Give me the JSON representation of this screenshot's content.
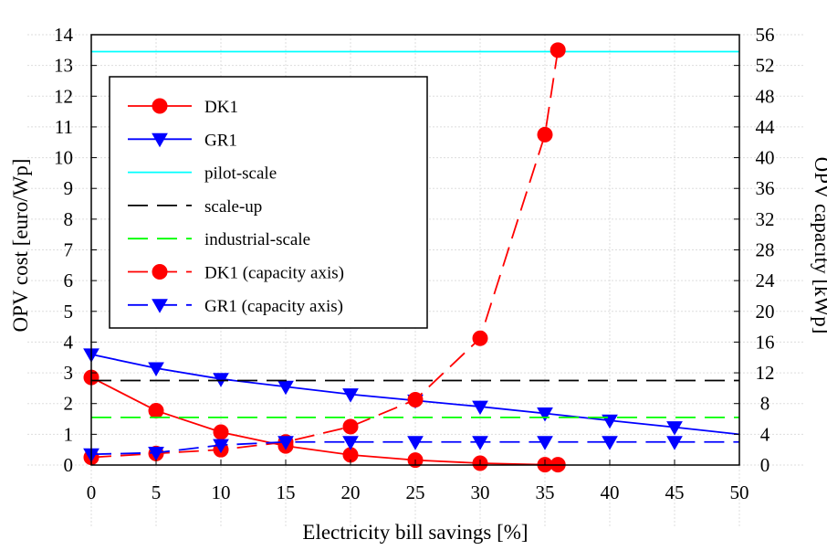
{
  "chart_data": {
    "type": "line",
    "xlabel": "Electricity bill savings [%]",
    "ylabel_left": "OPV cost [euro/Wp]",
    "ylabel_right": "OPV capacity [kWp]",
    "xlim": [
      0,
      50
    ],
    "ylim_left": [
      0,
      14
    ],
    "ylim_right": [
      0,
      56
    ],
    "x_ticks": [
      0,
      5,
      10,
      15,
      20,
      25,
      30,
      35,
      40,
      45,
      50
    ],
    "y_ticks_left": [
      0,
      1,
      2,
      3,
      4,
      5,
      6,
      7,
      8,
      9,
      10,
      11,
      12,
      13,
      14
    ],
    "y_ticks_right": [
      0,
      4,
      8,
      12,
      16,
      20,
      24,
      28,
      32,
      36,
      40,
      44,
      48,
      52,
      56
    ],
    "grid": true,
    "legend_position": "top-left",
    "series": [
      {
        "name": "DK1",
        "axis": "left",
        "color": "#ff0000",
        "line": "solid",
        "marker": "circle",
        "x": [
          0,
          5,
          10,
          15,
          20,
          25,
          30,
          35,
          36
        ],
        "y": [
          2.85,
          1.77,
          1.07,
          0.62,
          0.33,
          0.16,
          0.06,
          0.01,
          0.01
        ]
      },
      {
        "name": "GR1",
        "axis": "left",
        "color": "#0000ff",
        "line": "solid",
        "marker": "triangle-down",
        "x": [
          0,
          5,
          10,
          15,
          20,
          25,
          30,
          35,
          40,
          45,
          50
        ],
        "y": [
          3.6,
          3.15,
          2.8,
          2.55,
          2.3,
          2.1,
          1.9,
          1.68,
          1.45,
          1.23,
          1.0
        ],
        "marker_x": [
          0,
          5,
          10,
          15,
          20,
          25,
          30,
          35,
          40,
          45
        ]
      },
      {
        "name": "pilot-scale",
        "axis": "left",
        "color": "#00ffff",
        "line": "solid",
        "marker": "none",
        "x": [
          0,
          50
        ],
        "y": [
          13.45,
          13.45
        ]
      },
      {
        "name": "scale-up",
        "axis": "left",
        "color": "#000000",
        "line": "dashed",
        "marker": "none",
        "x": [
          0,
          50
        ],
        "y": [
          2.75,
          2.75
        ]
      },
      {
        "name": "industrial-scale",
        "axis": "left",
        "color": "#00ff00",
        "line": "dashed",
        "marker": "none",
        "x": [
          0,
          50
        ],
        "y": [
          1.55,
          1.55
        ]
      },
      {
        "name": "DK1 (capacity axis)",
        "axis": "right",
        "color": "#ff0000",
        "line": "dashed",
        "marker": "circle",
        "x": [
          0,
          5,
          10,
          15,
          20,
          25,
          30,
          35,
          36
        ],
        "y": [
          1.0,
          1.5,
          2.0,
          3.0,
          5.0,
          8.5,
          16.5,
          43.0,
          54.0
        ]
      },
      {
        "name": "GR1 (capacity axis)",
        "axis": "right",
        "color": "#0000ff",
        "line": "dashed",
        "marker": "triangle-down",
        "x": [
          0,
          5,
          10,
          15,
          20,
          25,
          30,
          35,
          40,
          45,
          50
        ],
        "y": [
          1.4,
          1.6,
          2.6,
          3.0,
          3.0,
          3.0,
          3.0,
          3.0,
          3.0,
          3.0,
          3.0
        ],
        "marker_x": [
          0,
          5,
          10,
          15,
          20,
          25,
          30,
          35,
          40,
          45
        ]
      }
    ]
  }
}
